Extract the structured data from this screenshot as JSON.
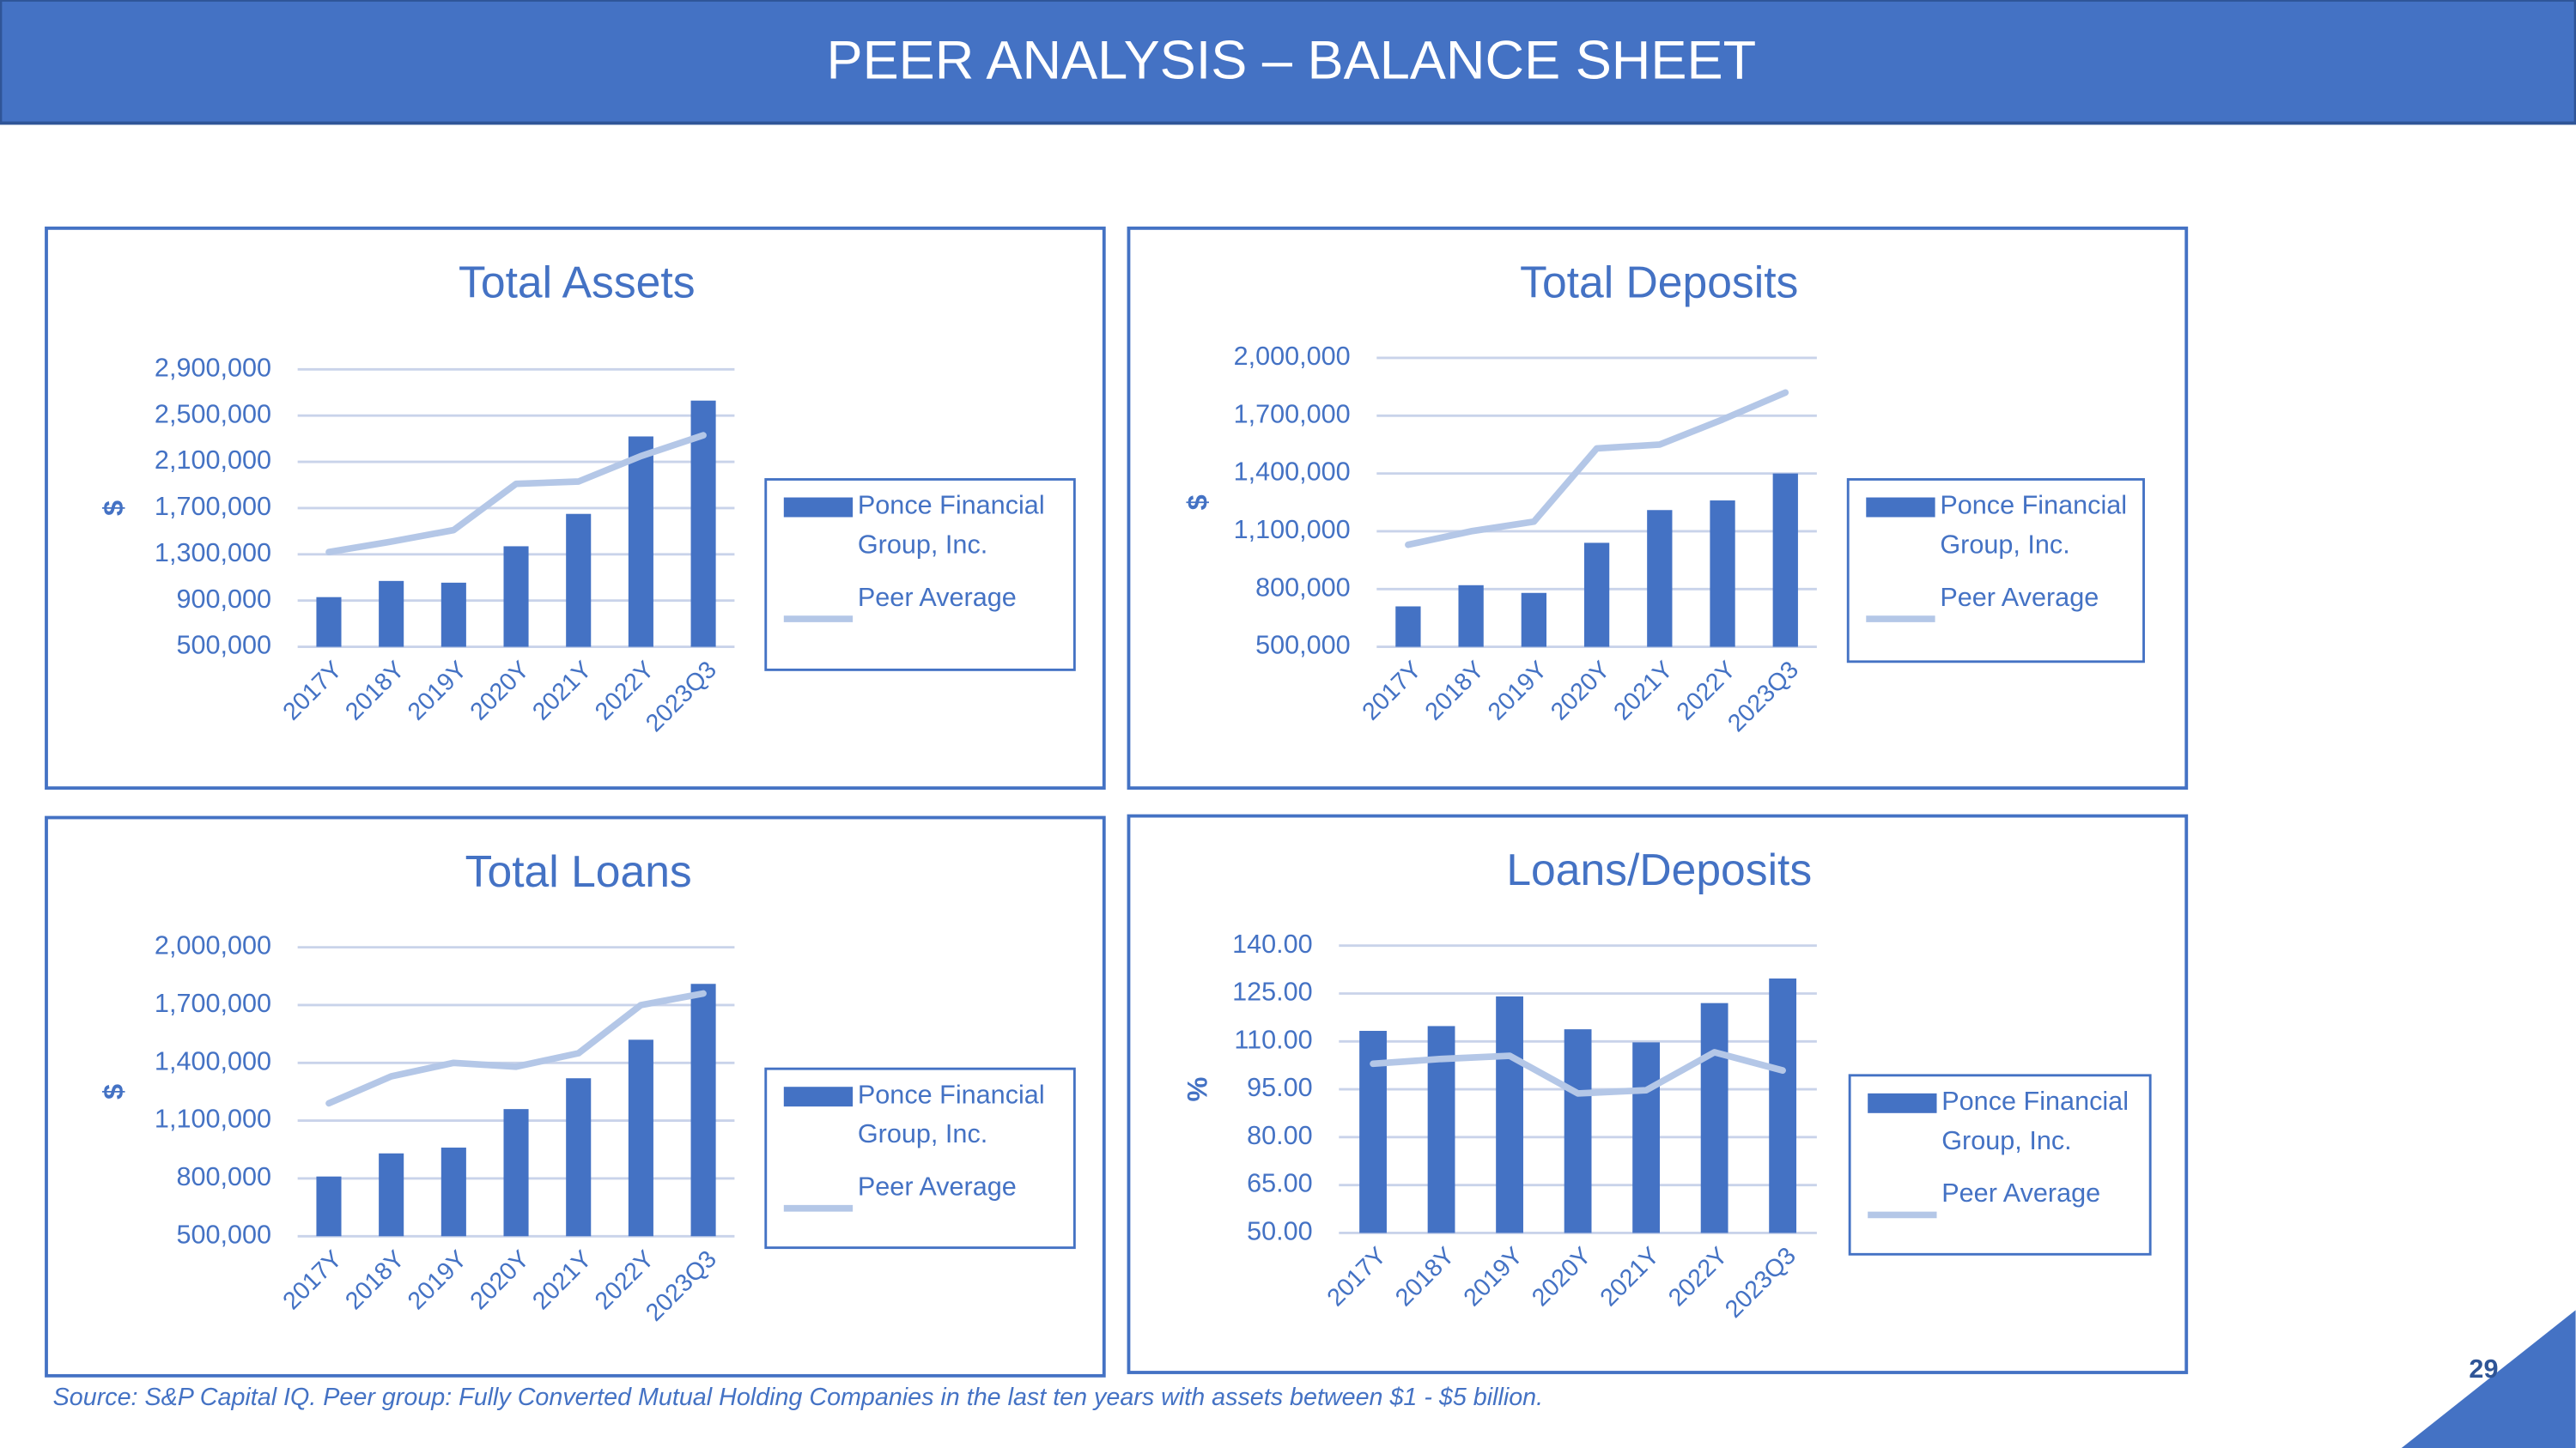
{
  "header": {
    "title": "PEER ANALYSIS – BALANCE SHEET"
  },
  "footer": {
    "source": "Source: S&P Capital IQ. Peer group: Fully Converted Mutual Holding Companies in the last ten years with assets between $1 - $5 billion.",
    "page_number": "29"
  },
  "chart_data": [
    {
      "type": "bar",
      "title": "Total Assets",
      "y_label": "$",
      "categories": [
        "2017Y",
        "2018Y",
        "2019Y",
        "2020Y",
        "2021Y",
        "2022Y",
        "2023Q3"
      ],
      "series": [
        {
          "name": "Ponce Financial Group, Inc.",
          "color": "#4472c4",
          "type": "bar",
          "values": [
            930000,
            1070000,
            1055000,
            1370000,
            1650000,
            2320000,
            2630000
          ]
        },
        {
          "name": "Peer Average",
          "color": "#b4c7e7",
          "type": "line",
          "values": [
            1320000,
            1410000,
            1510000,
            1910000,
            1930000,
            2150000,
            2330000
          ]
        }
      ],
      "ylim": [
        500000,
        2900000
      ],
      "yticks": [
        {
          "value": 500000,
          "label": "500,000"
        },
        {
          "value": 900000,
          "label": "900,000"
        },
        {
          "value": 1300000,
          "label": "1,300,000"
        },
        {
          "value": 1700000,
          "label": "1,700,000"
        },
        {
          "value": 2100000,
          "label": "2,100,000"
        },
        {
          "value": 2500000,
          "label": "2,500,000"
        },
        {
          "value": 2900000,
          "label": "2,900,000"
        }
      ],
      "grid": true
    },
    {
      "type": "bar",
      "title": "Total Deposits",
      "y_label": "$",
      "categories": [
        "2017Y",
        "2018Y",
        "2019Y",
        "2020Y",
        "2021Y",
        "2022Y",
        "2023Q3"
      ],
      "series": [
        {
          "name": "Ponce Financial Group, Inc.",
          "color": "#4472c4",
          "type": "bar",
          "values": [
            710000,
            820000,
            780000,
            1040000,
            1210000,
            1260000,
            1400000
          ]
        },
        {
          "name": "Peer Average",
          "color": "#b4c7e7",
          "type": "line",
          "values": [
            1030000,
            1100000,
            1150000,
            1530000,
            1550000,
            1680000,
            1820000
          ]
        }
      ],
      "ylim": [
        500000,
        2000000
      ],
      "yticks": [
        {
          "value": 500000,
          "label": "500,000"
        },
        {
          "value": 800000,
          "label": "800,000"
        },
        {
          "value": 1100000,
          "label": "1,100,000"
        },
        {
          "value": 1400000,
          "label": "1,400,000"
        },
        {
          "value": 1700000,
          "label": "1,700,000"
        },
        {
          "value": 2000000,
          "label": "2,000,000"
        }
      ],
      "grid": true
    },
    {
      "type": "bar",
      "title": "Total Loans",
      "y_label": "$",
      "categories": [
        "2017Y",
        "2018Y",
        "2019Y",
        "2020Y",
        "2021Y",
        "2022Y",
        "2023Q3"
      ],
      "series": [
        {
          "name": "Ponce Financial Group, Inc.",
          "color": "#4472c4",
          "type": "bar",
          "values": [
            810000,
            930000,
            960000,
            1160000,
            1320000,
            1520000,
            1810000
          ]
        },
        {
          "name": "Peer Average",
          "color": "#b4c7e7",
          "type": "line",
          "values": [
            1190000,
            1330000,
            1400000,
            1380000,
            1450000,
            1700000,
            1760000
          ]
        }
      ],
      "ylim": [
        500000,
        2000000
      ],
      "yticks": [
        {
          "value": 500000,
          "label": "500,000"
        },
        {
          "value": 800000,
          "label": "800,000"
        },
        {
          "value": 1100000,
          "label": "1,100,000"
        },
        {
          "value": 1400000,
          "label": "1,400,000"
        },
        {
          "value": 1700000,
          "label": "1,700,000"
        },
        {
          "value": 2000000,
          "label": "2,000,000"
        }
      ],
      "grid": true
    },
    {
      "type": "bar",
      "title": "Loans/Deposits",
      "y_label": "%",
      "categories": [
        "2017Y",
        "2018Y",
        "2019Y",
        "2020Y",
        "2021Y",
        "2022Y",
        "2023Q3"
      ],
      "series": [
        {
          "name": "Ponce Financial Group, Inc.",
          "color": "#4472c4",
          "type": "bar",
          "values": [
            113.3,
            114.8,
            124.1,
            113.8,
            109.7,
            122.0,
            129.7
          ]
        },
        {
          "name": "Peer Average",
          "color": "#b4c7e7",
          "type": "line",
          "values": [
            103.0,
            104.5,
            105.5,
            93.7,
            94.7,
            106.6,
            100.9
          ]
        }
      ],
      "ylim": [
        50,
        140
      ],
      "yticks": [
        {
          "value": 50,
          "label": "50.00"
        },
        {
          "value": 65,
          "label": "65.00"
        },
        {
          "value": 80,
          "label": "80.00"
        },
        {
          "value": 95,
          "label": "95.00"
        },
        {
          "value": 110,
          "label": "110.00"
        },
        {
          "value": 125,
          "label": "125.00"
        },
        {
          "value": 140,
          "label": "140.00"
        }
      ],
      "grid": true
    }
  ]
}
